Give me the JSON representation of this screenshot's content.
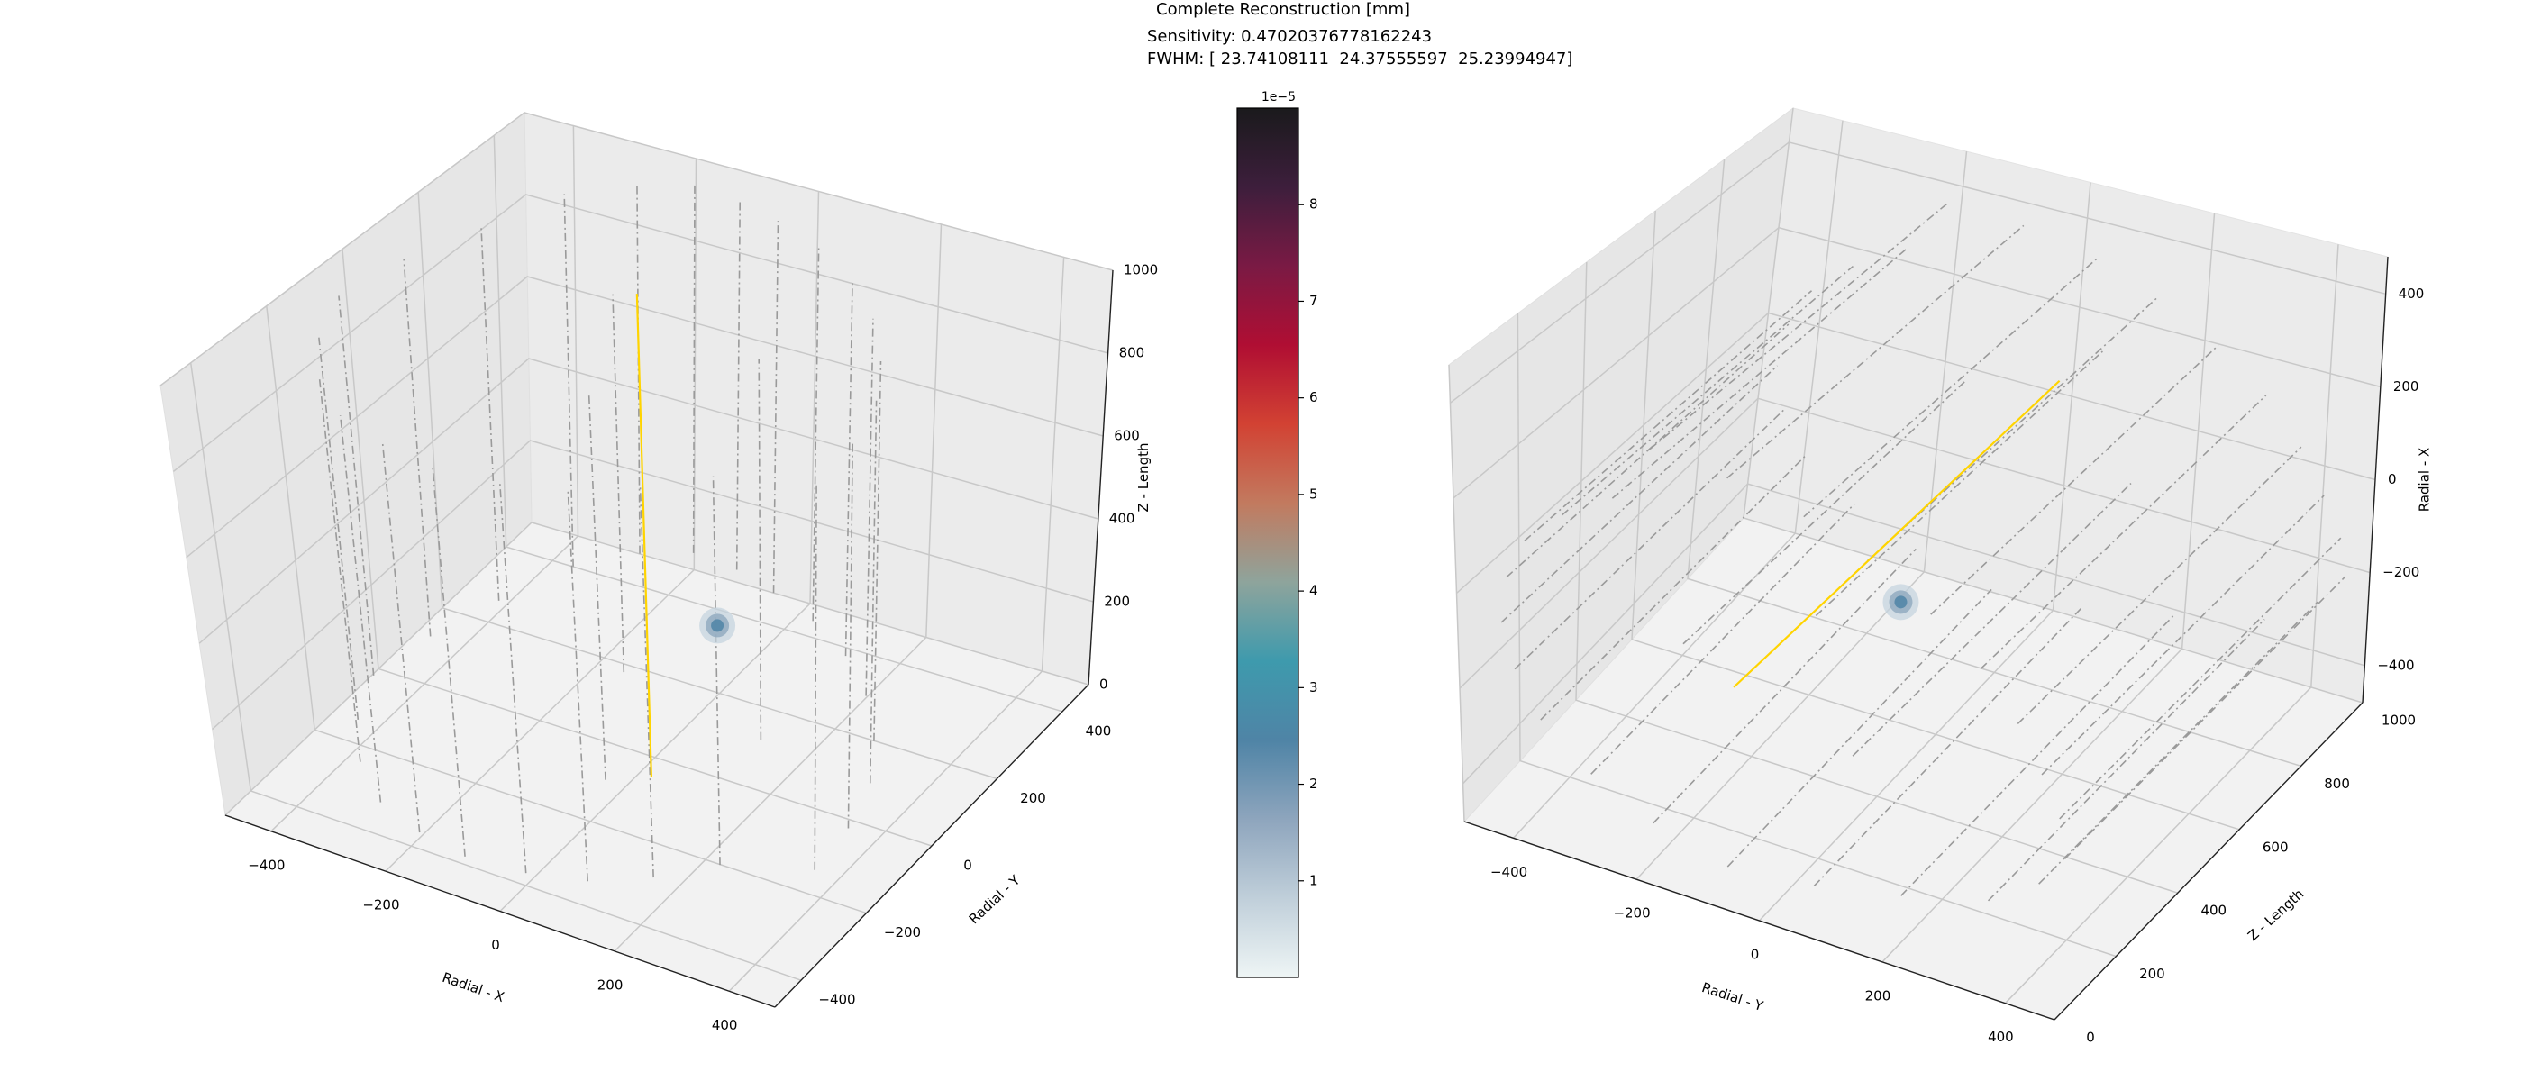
{
  "title": {
    "line1": "Complete Reconstruction [mm]",
    "line2": "Sensitivity: 0.47020376778162243",
    "line3": "FWHM: [ 23.74108111  24.37555597  25.23994947]"
  },
  "chart_data": [
    {
      "type": "scatter",
      "view": "3d",
      "xlabel": "Radial - X",
      "ylabel": "Radial - Y",
      "zlabel": "Z - Length",
      "xlim": [
        -480,
        480
      ],
      "ylim": [
        -480,
        480
      ],
      "zlim": [
        0,
        1000
      ],
      "xticks": [
        -400,
        -200,
        0,
        200,
        400
      ],
      "yticks": [
        -400,
        -200,
        0,
        200,
        400
      ],
      "zticks": [
        0,
        200,
        400,
        600,
        800,
        1000
      ],
      "grid": true,
      "source_line": {
        "color": "#ffd400",
        "x": 10,
        "y": -30,
        "z": [
          0,
          1000
        ]
      },
      "hotspot": {
        "x": 60,
        "y": 90,
        "z": 270,
        "color": "#4f84a6"
      },
      "detector_lines": {
        "color": "#9a9a9a",
        "z": [
          60,
          960
        ],
        "xy": [
          [
            -420,
            60
          ],
          [
            -380,
            200
          ],
          [
            -330,
            340
          ],
          [
            -260,
            420
          ],
          [
            -190,
            460
          ],
          [
            -110,
            450
          ],
          [
            -30,
            420
          ],
          [
            60,
            380
          ],
          [
            150,
            320
          ],
          [
            230,
            240
          ],
          [
            300,
            140
          ],
          [
            350,
            40
          ],
          [
            380,
            -80
          ],
          [
            390,
            -200
          ],
          [
            -440,
            -80
          ],
          [
            -400,
            -200
          ],
          [
            -340,
            -300
          ],
          [
            -260,
            -380
          ],
          [
            -170,
            -420
          ],
          [
            -80,
            -440
          ],
          [
            20,
            -430
          ],
          [
            110,
            -400
          ],
          [
            190,
            -340
          ],
          [
            260,
            -260
          ],
          [
            -120,
            120
          ],
          [
            0,
            -150
          ],
          [
            150,
            60
          ]
        ]
      }
    },
    {
      "type": "scatter",
      "view": "3d",
      "xlabel": "Radial - Y",
      "ylabel": "Z - Length",
      "zlabel": "Radial - X",
      "xlim": [
        -480,
        480
      ],
      "ylim": [
        0,
        1000
      ],
      "zlim": [
        -480,
        480
      ],
      "xticks": [
        -400,
        -200,
        0,
        200,
        400
      ],
      "yticks": [
        0,
        200,
        400,
        600,
        800,
        1000
      ],
      "zticks": [
        -400,
        -200,
        0,
        200,
        400
      ],
      "grid": true,
      "source_line": {
        "color": "#ffd400",
        "x": -30,
        "z": 10,
        "y": [
          0,
          1000
        ]
      },
      "hotspot": {
        "x": 90,
        "y": 270,
        "z": 60,
        "color": "#4f84a6"
      },
      "detector_lines": {
        "color": "#9a9a9a",
        "y": [
          60,
          960
        ],
        "xz": [
          [
            60,
            -420
          ],
          [
            200,
            -380
          ],
          [
            340,
            -330
          ],
          [
            420,
            -260
          ],
          [
            460,
            -190
          ],
          [
            450,
            -110
          ],
          [
            420,
            -30
          ],
          [
            380,
            60
          ],
          [
            320,
            150
          ],
          [
            240,
            230
          ],
          [
            140,
            300
          ],
          [
            40,
            350
          ],
          [
            -80,
            380
          ],
          [
            -200,
            390
          ],
          [
            -80,
            -440
          ],
          [
            -200,
            -400
          ],
          [
            -300,
            -340
          ],
          [
            -380,
            -260
          ],
          [
            -420,
            -170
          ],
          [
            -440,
            -80
          ],
          [
            -430,
            20
          ],
          [
            -400,
            110
          ],
          [
            -340,
            190
          ],
          [
            -260,
            260
          ],
          [
            120,
            -120
          ],
          [
            -150,
            0
          ],
          [
            60,
            150
          ]
        ]
      }
    },
    {
      "type": "colorbar",
      "offset_text": "1e−5",
      "vmin": 0,
      "vmax": 9,
      "ticks": [
        1,
        2,
        3,
        4,
        5,
        6,
        7,
        8
      ],
      "colormap": [
        "#eef5f5",
        "#c0cfda",
        "#8ea5bd",
        "#4f84a6",
        "#3e9aad",
        "#8ea49c",
        "#c27a5f",
        "#d24233",
        "#b00e33",
        "#7a1a44",
        "#3d1e3c",
        "#1a1a1c"
      ]
    }
  ]
}
